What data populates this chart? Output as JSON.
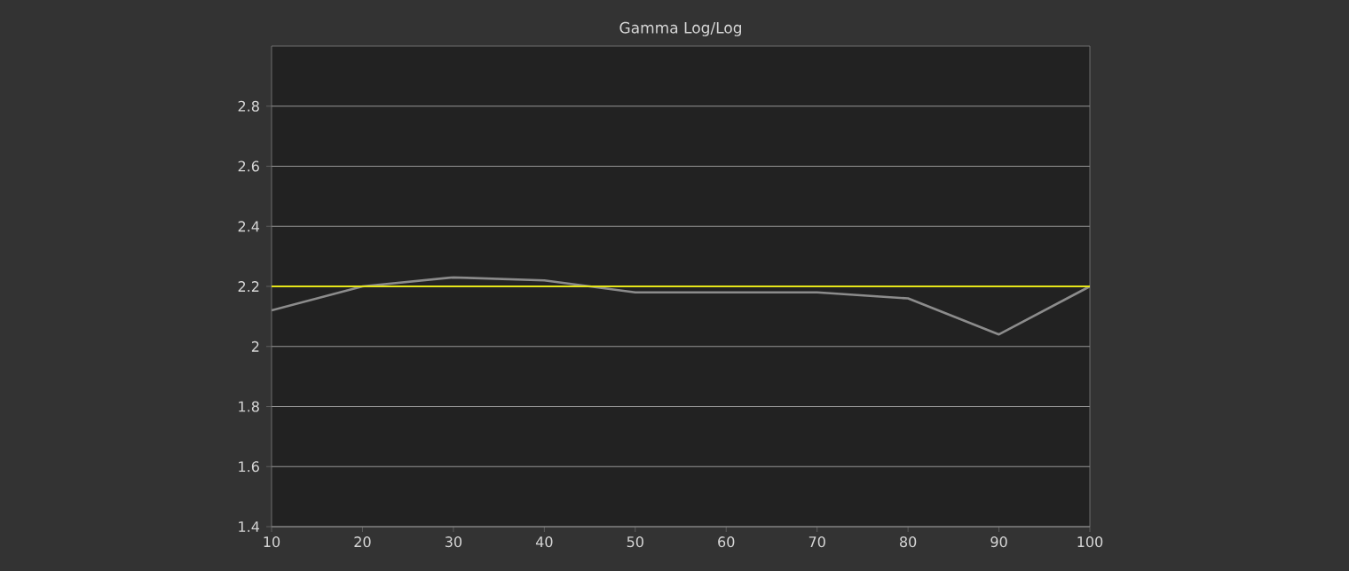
{
  "chart_data": {
    "type": "line",
    "title": "Gamma Log/Log",
    "x": [
      10,
      20,
      30,
      40,
      50,
      60,
      70,
      80,
      90,
      100
    ],
    "series": [
      {
        "color": "#8c8c8c",
        "values": [
          2.12,
          2.2,
          2.23,
          2.22,
          2.18,
          2.18,
          2.18,
          2.16,
          2.04,
          2.2
        ]
      }
    ],
    "xlim": [
      10,
      100
    ],
    "xticks": [
      10,
      20,
      30,
      40,
      50,
      60,
      70,
      80,
      90,
      100
    ],
    "ylim": [
      1.4,
      3.0
    ],
    "yticks": [
      1.4,
      1.6,
      1.8,
      2,
      2.2,
      2.4,
      2.6,
      2.8
    ],
    "ref_lines": [
      {
        "axis": "y",
        "value": 2.2,
        "color": "#e6e619"
      }
    ],
    "grid": "y",
    "marker": "none",
    "line_style": "solid"
  }
}
